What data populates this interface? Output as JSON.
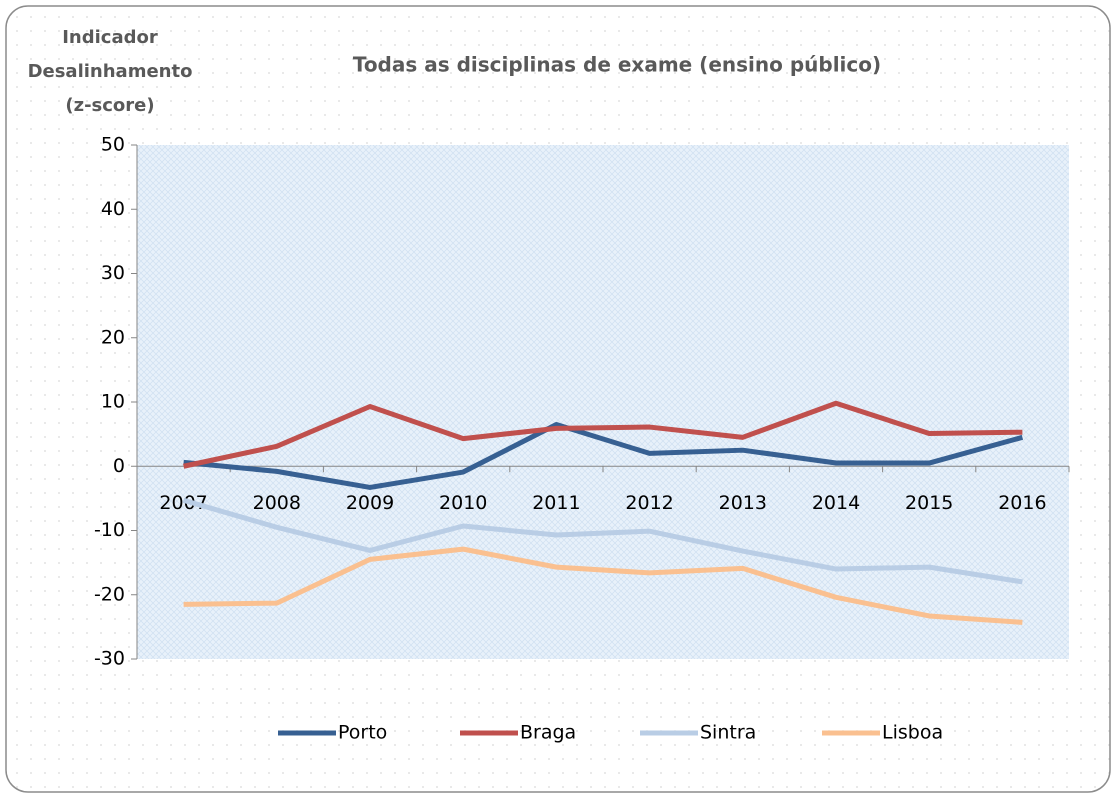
{
  "chart_data": {
    "type": "line",
    "title": "Todas as disciplinas de exame (ensino público)",
    "ylabel": [
      "Indicador",
      "Desalinhamento",
      "(z-score)"
    ],
    "categories": [
      "2007",
      "2008",
      "2009",
      "2010",
      "2011",
      "2012",
      "2013",
      "2014",
      "2015",
      "2016"
    ],
    "series": [
      {
        "name": "Porto",
        "color": "#376092",
        "values": [
          0.6,
          -0.8,
          -3.3,
          -0.9,
          6.5,
          2.0,
          2.5,
          0.5,
          0.5,
          4.5
        ]
      },
      {
        "name": "Braga",
        "color": "#c0504d",
        "values": [
          0.0,
          3.1,
          9.3,
          4.3,
          5.9,
          6.1,
          4.5,
          9.8,
          5.1,
          5.3
        ]
      },
      {
        "name": "Sintra",
        "color": "#b9cde5",
        "values": [
          -5.3,
          -9.5,
          -13.1,
          -9.3,
          -10.7,
          -10.1,
          -13.2,
          -16.0,
          -15.7,
          -18.0
        ]
      },
      {
        "name": "Lisboa",
        "color": "#fac090",
        "values": [
          -21.5,
          -21.3,
          -14.5,
          -12.9,
          -15.7,
          -16.6,
          -15.9,
          -20.4,
          -23.3,
          -24.3
        ]
      }
    ],
    "ylim": [
      -30,
      50
    ],
    "yticks": [
      -30,
      -20,
      -10,
      0,
      10,
      20,
      30,
      40,
      50
    ],
    "legend": "bottom"
  }
}
